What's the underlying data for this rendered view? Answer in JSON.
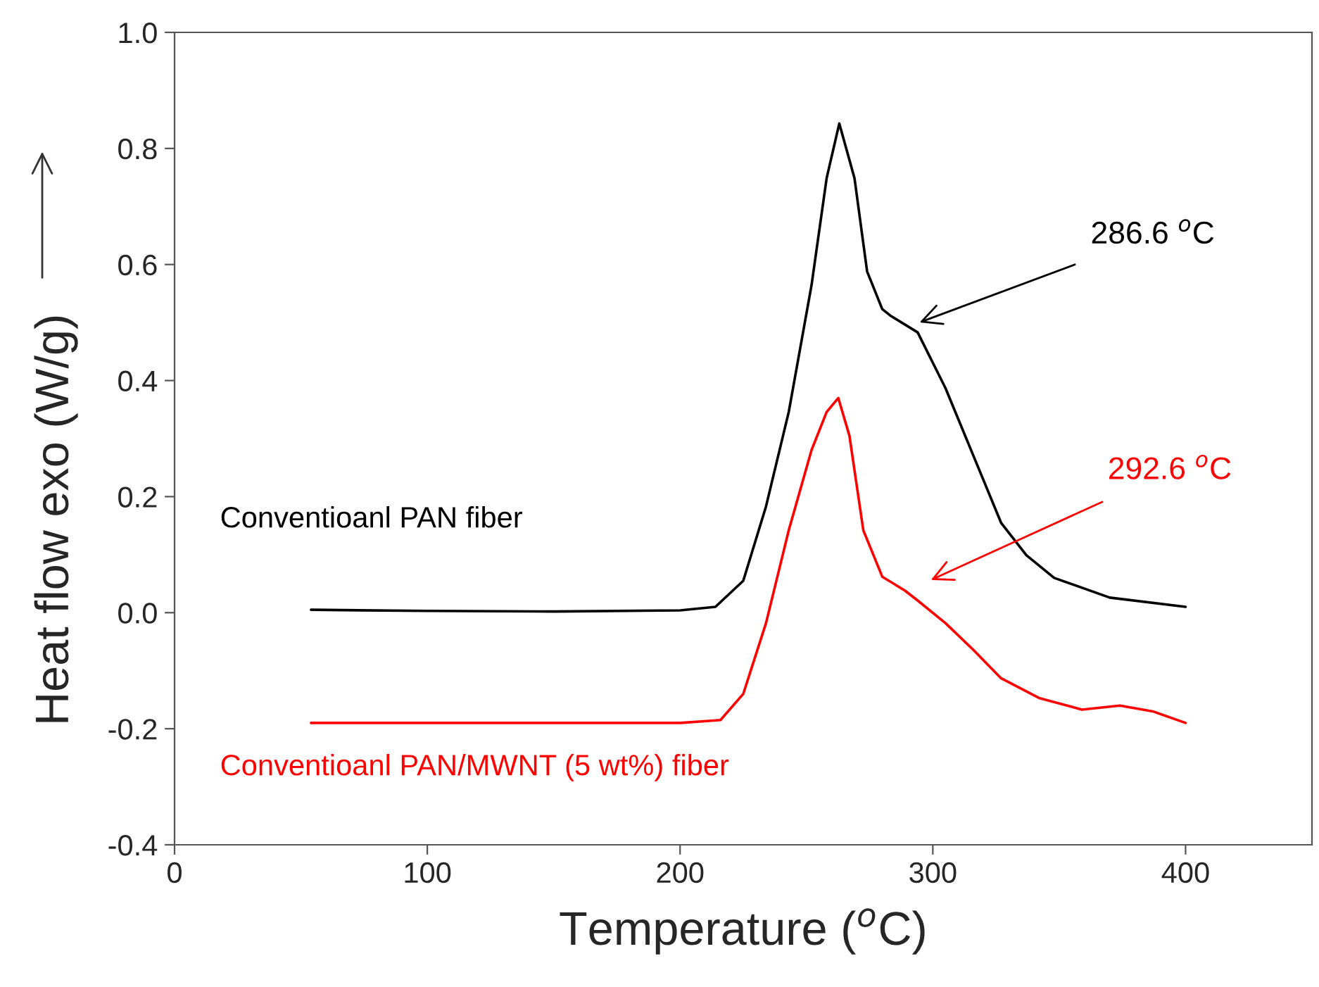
{
  "chart_data": {
    "type": "line",
    "xlabel": "Temperature ($^{o}$C)",
    "ylabel": "Heat flow exo (W/g)",
    "xlim": [
      0,
      450
    ],
    "xticks": [
      0,
      100,
      200,
      300,
      400
    ],
    "ylim": [
      -0.4,
      1.0
    ],
    "yticks": [
      {
        "value": -0.4,
        "label": "-0.4"
      },
      {
        "value": -0.2,
        "label": "-0.2"
      },
      {
        "value": 0.0,
        "label": "0.0"
      },
      {
        "value": 0.2,
        "label": "0.2"
      },
      {
        "value": 0.4,
        "label": "0.4"
      },
      {
        "value": 0.6,
        "label": "0.6"
      },
      {
        "value": 0.8,
        "label": "0.8"
      },
      {
        "value": 1.0,
        "label": "1.0"
      }
    ],
    "grid": false,
    "legend": false,
    "marker": "none",
    "line_style": "solid",
    "series": [
      {
        "name": "Conventioanl PAN fiber",
        "color": "#000000",
        "x": [
          54,
          100,
          150,
          200,
          214,
          225,
          234,
          243,
          252,
          258,
          263,
          269,
          274,
          280,
          283.5,
          294,
          305,
          316,
          327,
          337,
          348,
          370,
          400
        ],
        "values": [
          0.005,
          0.003,
          0.002,
          0.004,
          0.01,
          0.055,
          0.183,
          0.346,
          0.564,
          0.749,
          0.843,
          0.749,
          0.588,
          0.523,
          0.511,
          0.483,
          0.387,
          0.271,
          0.155,
          0.099,
          0.06,
          0.026,
          0.01
        ]
      },
      {
        "name": "Conventioanl PAN/MWNT (5 wt%) fiber",
        "color": "#ff0000",
        "x": [
          54,
          100,
          150,
          200,
          216,
          225,
          234,
          243,
          252,
          258,
          262.6,
          267,
          272.5,
          280,
          289,
          294,
          305,
          316,
          327,
          342,
          359,
          374,
          387,
          400
        ],
        "values": [
          -0.19,
          -0.19,
          -0.19,
          -0.19,
          -0.185,
          -0.14,
          -0.018,
          0.142,
          0.28,
          0.346,
          0.37,
          0.305,
          0.142,
          0.062,
          0.038,
          0.021,
          -0.018,
          -0.064,
          -0.113,
          -0.147,
          -0.167,
          -0.16,
          -0.17,
          -0.19
        ]
      }
    ],
    "annotations": [
      "286.6 $^{o}$C",
      "292.6 $^{o}$C"
    ]
  }
}
